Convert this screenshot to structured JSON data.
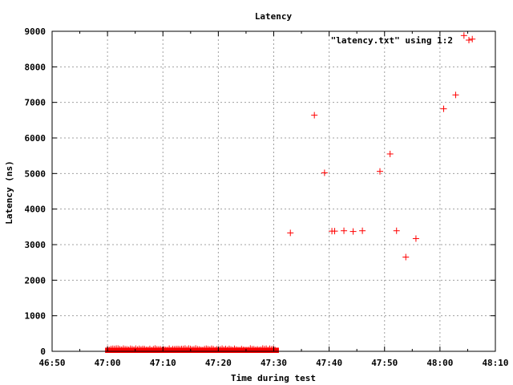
{
  "chart_data": {
    "type": "scatter",
    "title": "Latency",
    "xlabel": "Time during test",
    "ylabel": "Latency (ns)",
    "x_unit": "seconds",
    "xlim": [
      -600,
      4200
    ],
    "ylim": [
      0,
      9000
    ],
    "x_ticks": [
      {
        "value": -600,
        "label": "46:50"
      },
      {
        "value": 0,
        "label": "47:00"
      },
      {
        "value": 600,
        "label": "47:10"
      },
      {
        "value": 1200,
        "label": "47:20"
      },
      {
        "value": 1800,
        "label": "47:30"
      },
      {
        "value": 2400,
        "label": "47:40"
      },
      {
        "value": 3000,
        "label": "47:50"
      },
      {
        "value": 3600,
        "label": "48:00"
      },
      {
        "value": 4200,
        "label": "48:10"
      }
    ],
    "y_ticks": [
      0,
      1000,
      2000,
      3000,
      4000,
      5000,
      6000,
      7000,
      8000,
      9000
    ],
    "grid": true,
    "legend_position": "top-right",
    "series": [
      {
        "name": "\"latency.txt\" using 1:2",
        "color": "#ff0000",
        "marker": "plus",
        "dense_band": {
          "x_start": 0,
          "x_end": 1830,
          "y_min": 0,
          "y_max": 80
        },
        "points": [
          {
            "x": 1980,
            "y": 3330
          },
          {
            "x": 2240,
            "y": 6640
          },
          {
            "x": 2350,
            "y": 5020
          },
          {
            "x": 2430,
            "y": 3380
          },
          {
            "x": 2460,
            "y": 3380
          },
          {
            "x": 2560,
            "y": 3390
          },
          {
            "x": 2660,
            "y": 3370
          },
          {
            "x": 2760,
            "y": 3390
          },
          {
            "x": 2950,
            "y": 5060
          },
          {
            "x": 3060,
            "y": 5550
          },
          {
            "x": 3130,
            "y": 3390
          },
          {
            "x": 3230,
            "y": 2650
          },
          {
            "x": 3340,
            "y": 3170
          },
          {
            "x": 3640,
            "y": 6820
          },
          {
            "x": 3770,
            "y": 7210
          },
          {
            "x": 3860,
            "y": 8880
          },
          {
            "x": 3950,
            "y": 8780
          }
        ]
      }
    ]
  }
}
